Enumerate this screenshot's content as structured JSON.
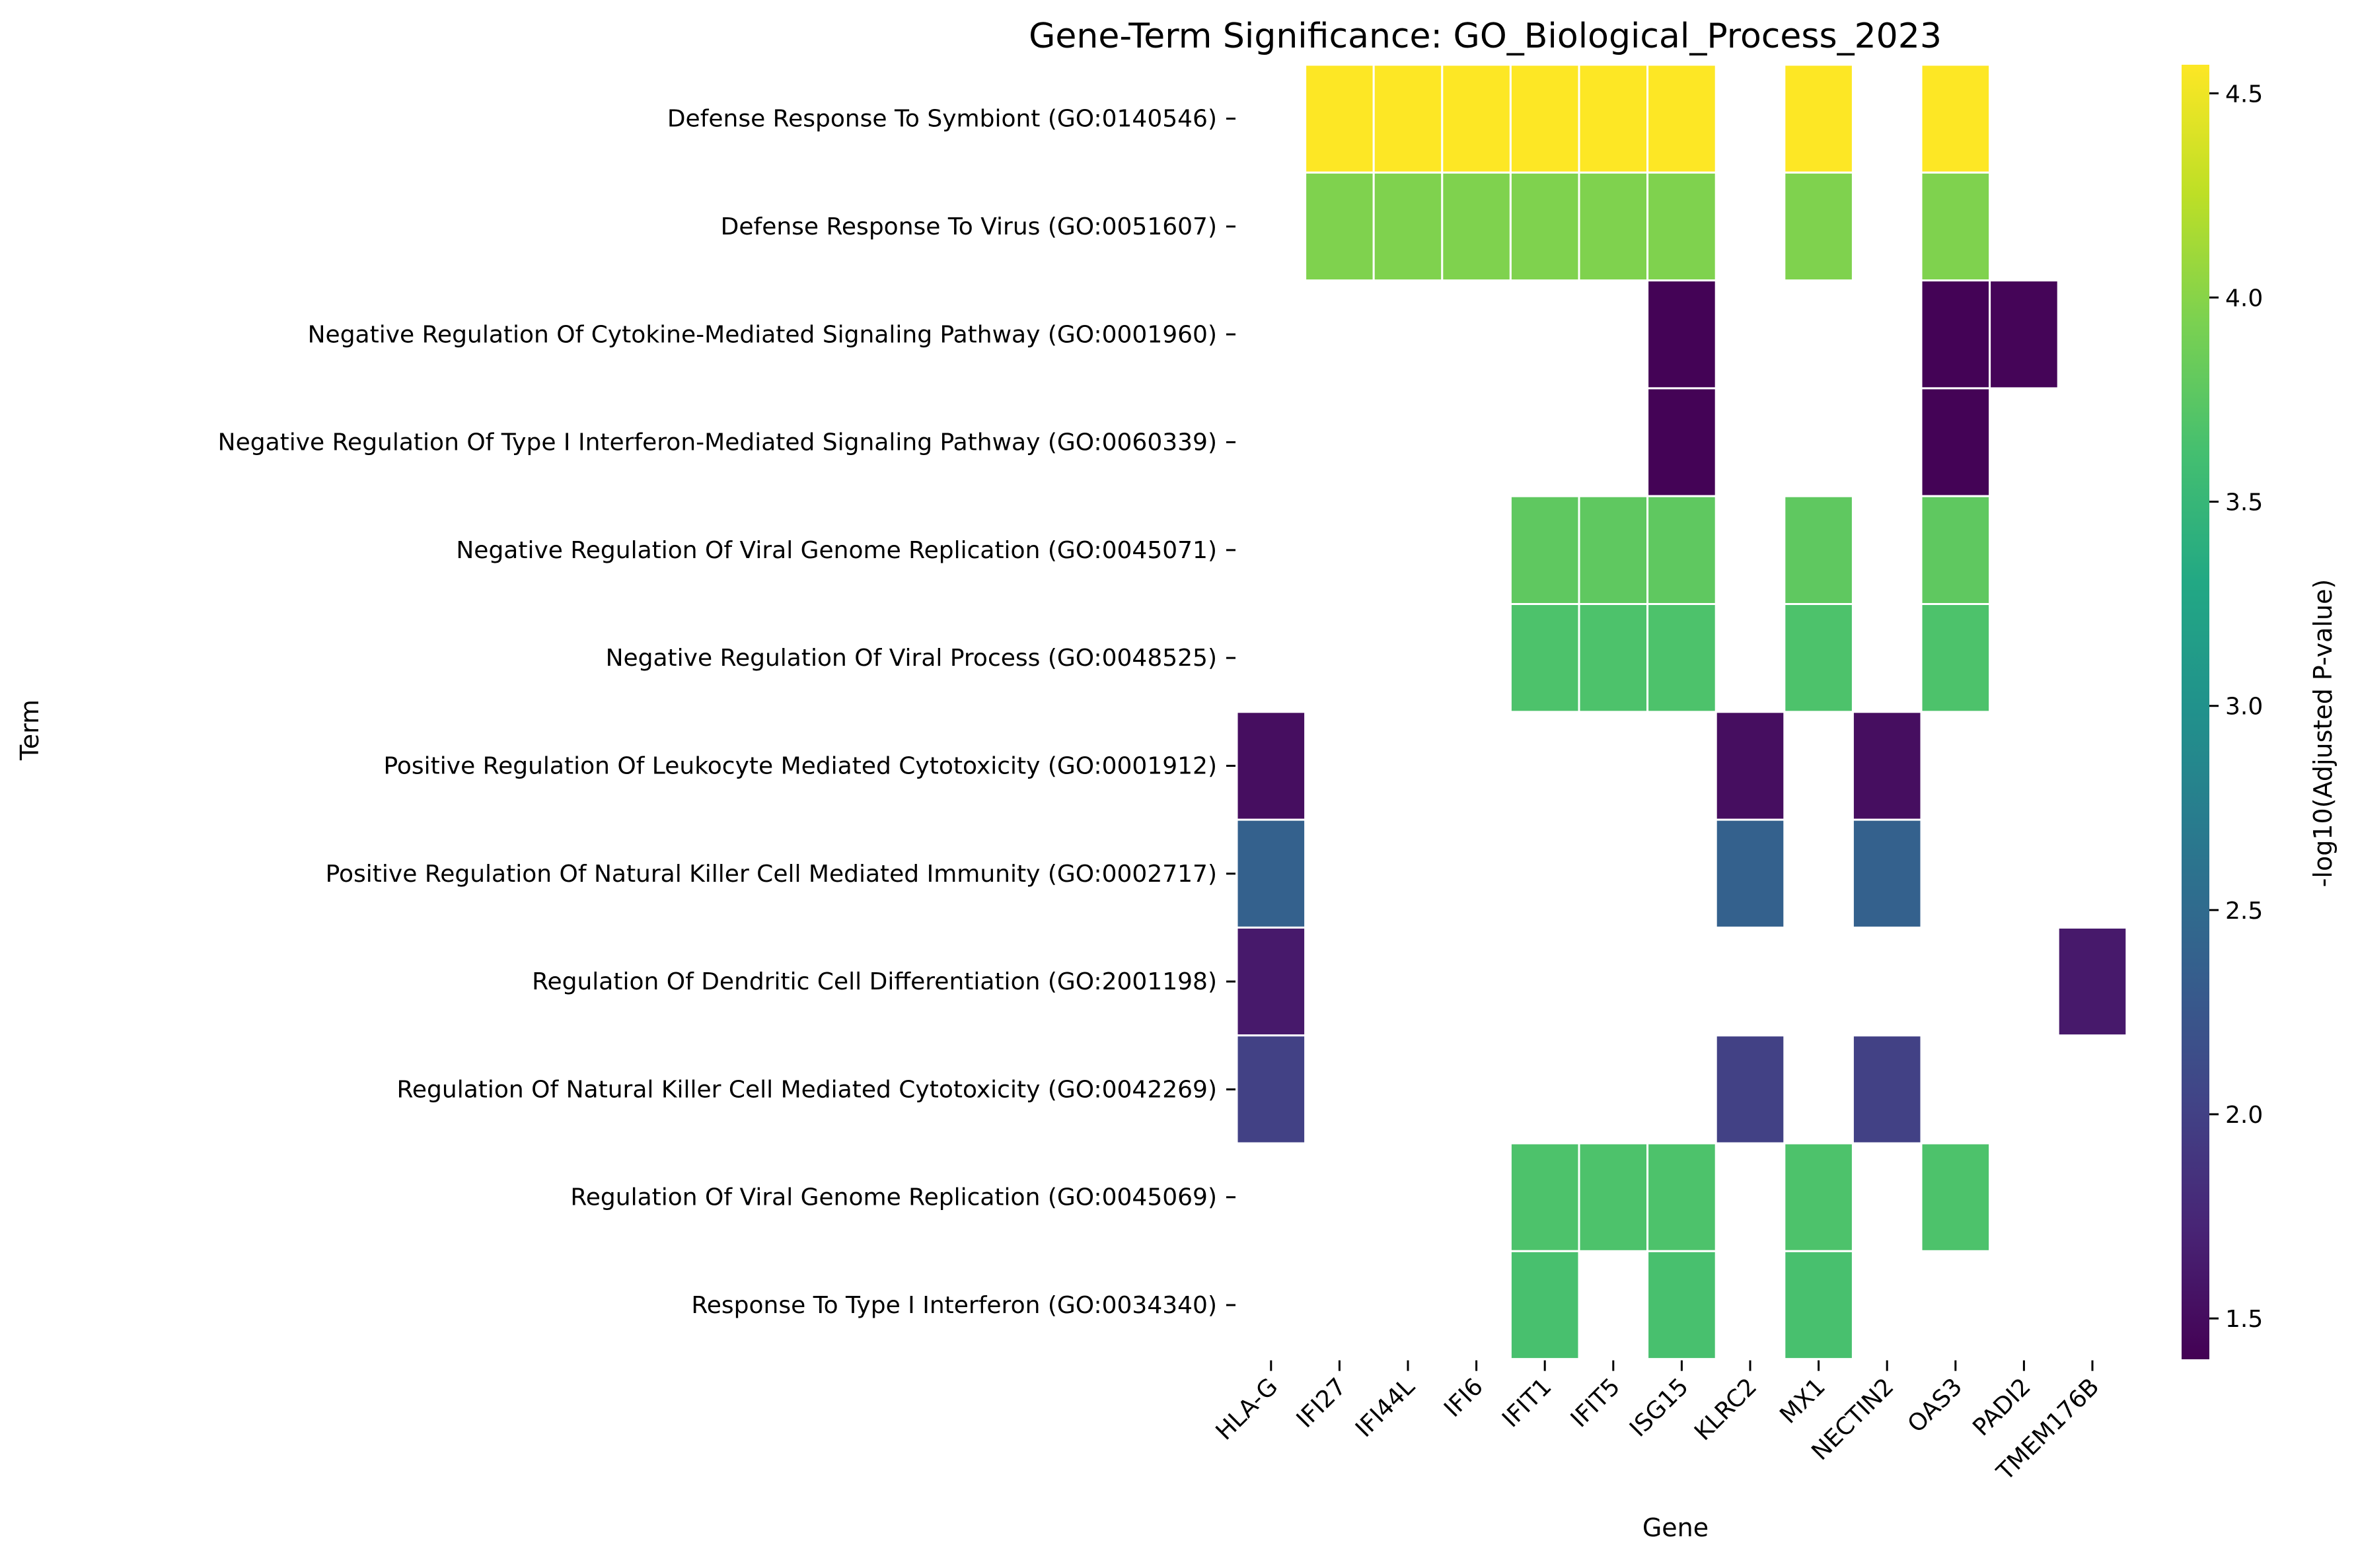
{
  "chart_data": {
    "type": "heatmap",
    "title": "Gene-Term Significance: GO_Biological_Process_2023",
    "xlabel": "Gene",
    "ylabel": "Term",
    "colorbar_label": "-log10(Adjusted P-value)",
    "colormap": "viridis",
    "value_range": [
      1.4,
      4.57
    ],
    "colorbar_ticks": [
      4.5,
      4.0,
      3.5,
      3.0,
      2.5,
      2.0,
      1.5
    ],
    "grid": false,
    "cell_border_color": "#ffffff",
    "genes": [
      "HLA-G",
      "IFI27",
      "IFI44L",
      "IFI6",
      "IFIT1",
      "IFIT5",
      "ISG15",
      "KLRC2",
      "MX1",
      "NECTIN2",
      "OAS3",
      "PADI2",
      "TMEM176B"
    ],
    "terms": [
      "Defense Response To Symbiont (GO:0140546)",
      "Defense Response To Virus (GO:0051607)",
      "Negative Regulation Of Cytokine-Mediated Signaling Pathway (GO:0001960)",
      "Negative Regulation Of Type I Interferon-Mediated Signaling Pathway (GO:0060339)",
      "Negative Regulation Of Viral Genome Replication (GO:0045071)",
      "Negative Regulation Of Viral Process (GO:0048525)",
      "Positive Regulation Of Leukocyte Mediated Cytotoxicity (GO:0001912)",
      "Positive Regulation Of Natural Killer Cell Mediated Immunity (GO:0002717)",
      "Regulation Of Dendritic Cell Differentiation (GO:2001198)",
      "Regulation Of Natural Killer Cell Mediated Cytotoxicity (GO:0042269)",
      "Regulation Of Viral Genome Replication (GO:0045069)",
      "Response To Type I Interferon (GO:0034340)"
    ],
    "values": [
      [
        null,
        4.57,
        4.57,
        4.57,
        4.57,
        4.57,
        4.57,
        null,
        4.57,
        null,
        4.57,
        null,
        null
      ],
      [
        null,
        3.96,
        3.96,
        3.96,
        3.96,
        3.96,
        3.96,
        null,
        3.96,
        null,
        3.96,
        null,
        null
      ],
      [
        null,
        null,
        null,
        null,
        null,
        null,
        1.42,
        null,
        null,
        null,
        1.42,
        1.44,
        null
      ],
      [
        null,
        null,
        null,
        null,
        null,
        null,
        1.42,
        null,
        null,
        null,
        1.42,
        null,
        null
      ],
      [
        null,
        null,
        null,
        null,
        3.78,
        3.78,
        3.78,
        null,
        3.78,
        null,
        3.78,
        null,
        null
      ],
      [
        null,
        null,
        null,
        null,
        3.67,
        3.67,
        3.67,
        null,
        3.67,
        null,
        3.67,
        null,
        null
      ],
      [
        1.52,
        null,
        null,
        null,
        null,
        null,
        null,
        1.52,
        null,
        1.52,
        null,
        null,
        null
      ],
      [
        2.38,
        null,
        null,
        null,
        null,
        null,
        null,
        2.38,
        null,
        2.38,
        null,
        null,
        null
      ],
      [
        1.62,
        null,
        null,
        null,
        null,
        null,
        null,
        null,
        null,
        null,
        null,
        null,
        1.62
      ],
      [
        2.0,
        null,
        null,
        null,
        null,
        null,
        null,
        2.0,
        null,
        2.0,
        null,
        null,
        null
      ],
      [
        null,
        null,
        null,
        null,
        3.67,
        3.67,
        3.67,
        null,
        3.67,
        null,
        3.67,
        null,
        null
      ],
      [
        null,
        null,
        null,
        null,
        3.64,
        null,
        3.64,
        null,
        3.64,
        null,
        null,
        null,
        null
      ]
    ]
  }
}
